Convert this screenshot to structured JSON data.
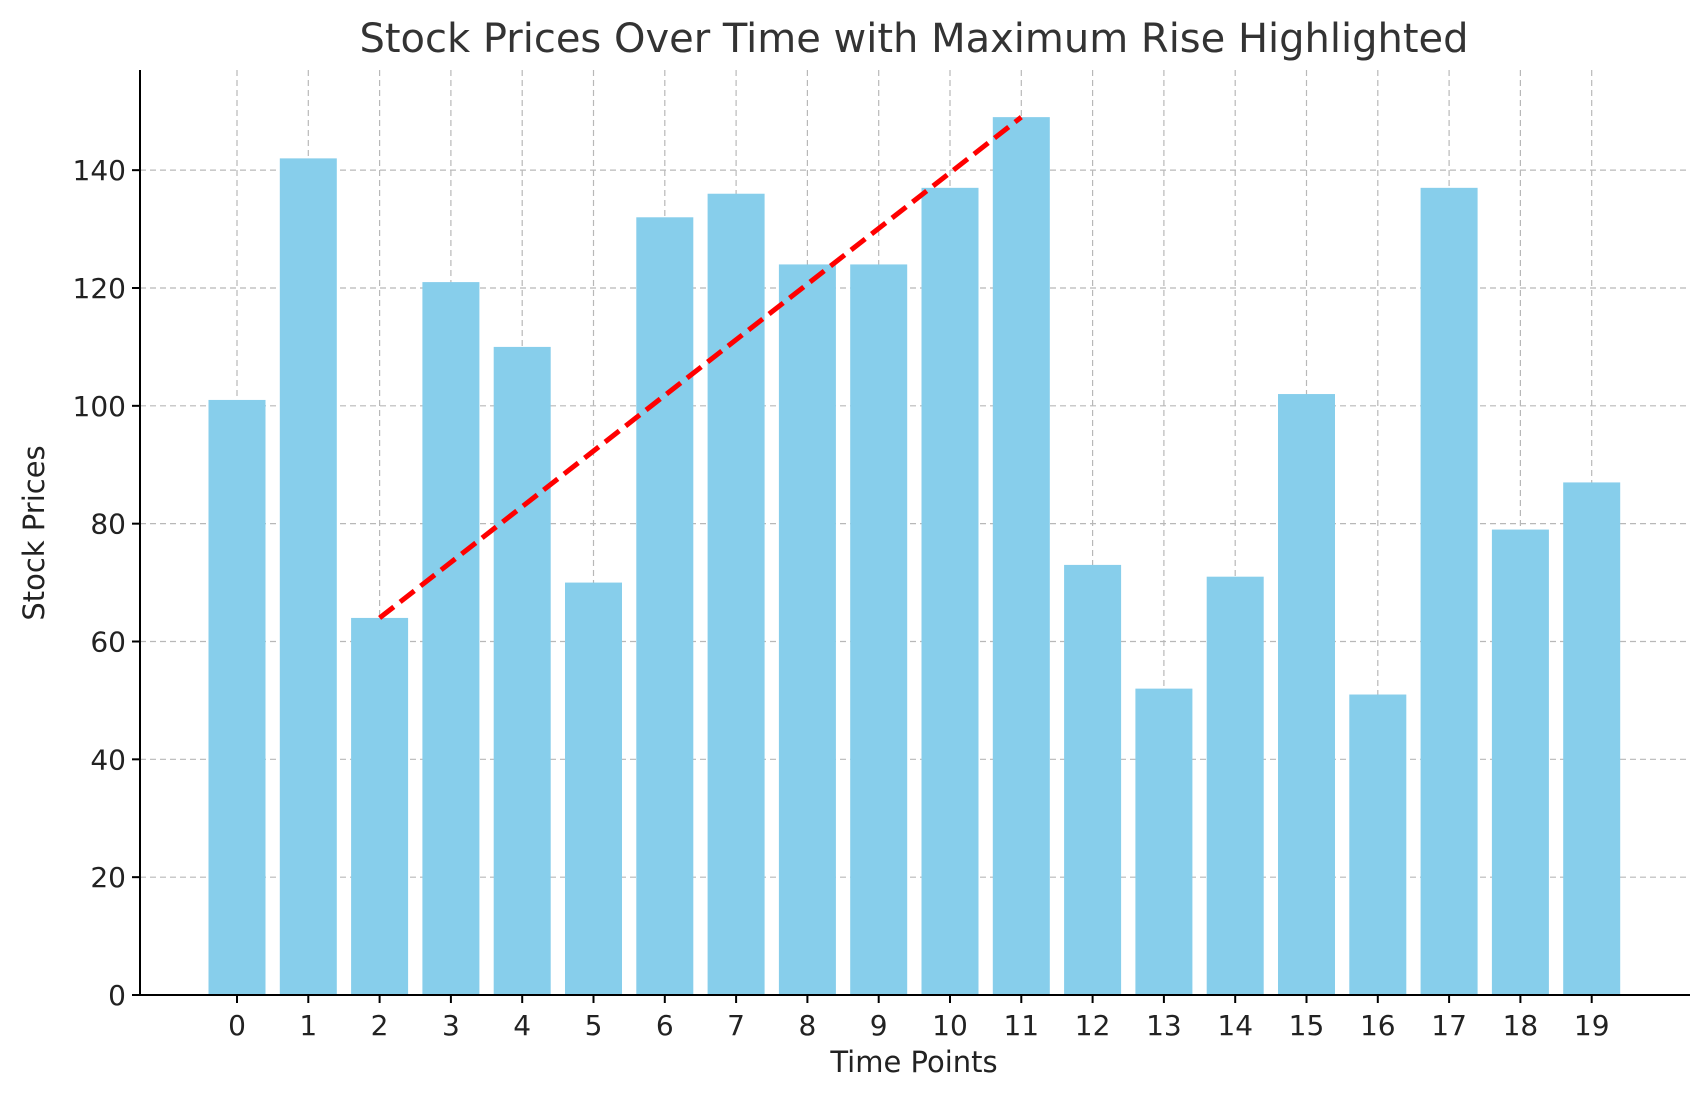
{
  "chart_data": {
    "type": "bar",
    "title": "Stock Prices Over Time with Maximum Rise Highlighted",
    "xlabel": "Time Points",
    "ylabel": "Stock Prices",
    "categories": [
      "0",
      "1",
      "2",
      "3",
      "4",
      "5",
      "6",
      "7",
      "8",
      "9",
      "10",
      "11",
      "12",
      "13",
      "14",
      "15",
      "16",
      "17",
      "18",
      "19"
    ],
    "values": [
      101,
      142,
      64,
      121,
      110,
      70,
      132,
      136,
      124,
      124,
      137,
      149,
      73,
      52,
      71,
      102,
      51,
      137,
      79,
      87
    ],
    "ylim": [
      0,
      157
    ],
    "yticks": [
      0,
      20,
      40,
      60,
      80,
      100,
      120,
      140
    ],
    "grid": true,
    "bar_color": "#87CEEB",
    "highlight": {
      "from_index": 2,
      "to_index": 11,
      "from_value": 64,
      "to_value": 149,
      "color": "#FF0000",
      "style": "dashed"
    }
  }
}
